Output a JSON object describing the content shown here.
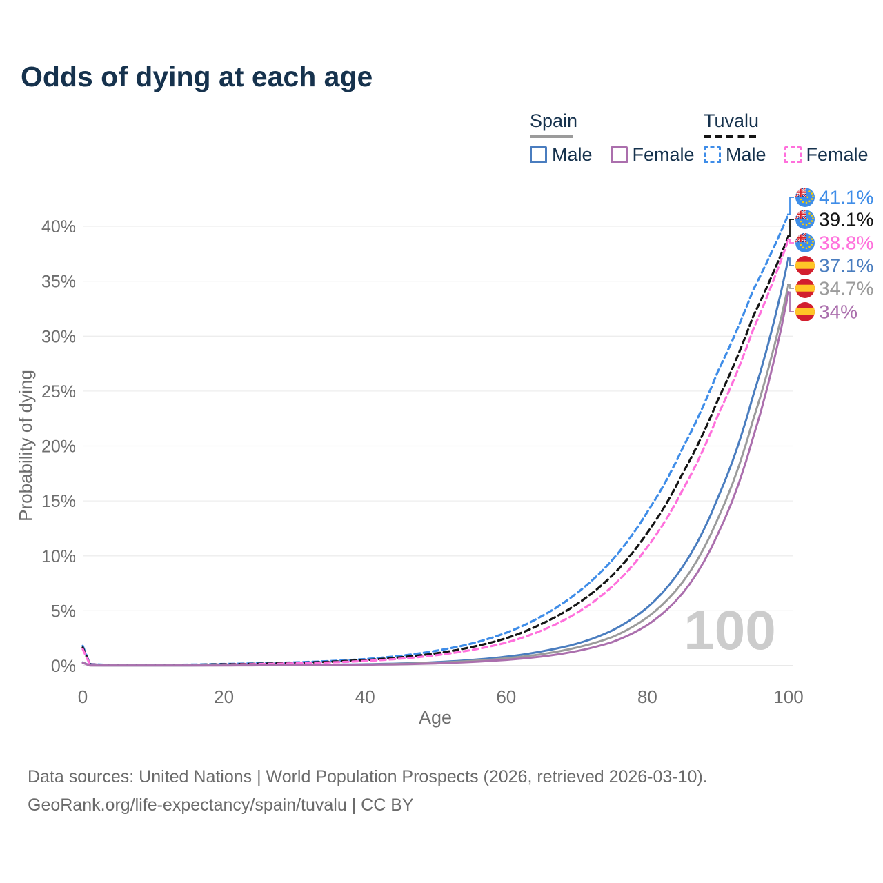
{
  "title": "Odds of dying at each age",
  "watermark": "100",
  "legend": {
    "groups": [
      {
        "country": "Spain",
        "underline_style": "solid",
        "underline_color": "#9b9b9b",
        "items": [
          {
            "label": "Male",
            "color": "#4a7dbf",
            "dashed": false
          },
          {
            "label": "Female",
            "color": "#ab6fad",
            "dashed": false
          }
        ]
      },
      {
        "country": "Tuvalu",
        "underline_style": "dashed",
        "underline_color": "#141414",
        "items": [
          {
            "label": "Male",
            "color": "#3f8de8",
            "dashed": true
          },
          {
            "label": "Female",
            "color": "#ff70dc",
            "dashed": true
          }
        ]
      }
    ]
  },
  "footer": {
    "line1": "Data sources: United Nations | World Population Prospects (2026, retrieved 2026-03-10).",
    "line2": "GeoRank.org/life-expectancy/spain/tuvalu | CC BY"
  },
  "chart_data": {
    "type": "line",
    "title": "Odds of dying at each age",
    "xlabel": "Age",
    "ylabel": "Probability of dying",
    "xlim": [
      0,
      100
    ],
    "ylim": [
      0,
      43
    ],
    "xticks": [
      0,
      20,
      40,
      60,
      80,
      100
    ],
    "yticks": [
      0,
      5,
      10,
      15,
      20,
      25,
      30,
      35,
      40
    ],
    "y_tick_suffix": "%",
    "grid": true,
    "legend_position": "top-right",
    "x": [
      0,
      1,
      5,
      10,
      15,
      20,
      25,
      30,
      35,
      40,
      45,
      50,
      55,
      60,
      65,
      70,
      75,
      80,
      85,
      90,
      95,
      100
    ],
    "series": [
      {
        "name": "Tuvalu Male",
        "country": "Tuvalu",
        "sex": "Male",
        "color": "#3f8de8",
        "dash": true,
        "flag": "tuvalu",
        "end_label": "41.1%",
        "end_value": 41.1,
        "values": [
          1.8,
          0.15,
          0.05,
          0.05,
          0.1,
          0.16,
          0.22,
          0.3,
          0.42,
          0.6,
          0.9,
          1.35,
          2.0,
          3.0,
          4.5,
          6.6,
          9.6,
          14.0,
          19.8,
          26.8,
          34.2,
          41.1
        ]
      },
      {
        "name": "Tuvalu Both sexes",
        "country": "Tuvalu",
        "sex": "Both",
        "color": "#141414",
        "dash": true,
        "flag": "tuvalu",
        "end_label": "39.1%",
        "end_value": 39.1,
        "values": [
          1.65,
          0.13,
          0.045,
          0.04,
          0.08,
          0.13,
          0.18,
          0.25,
          0.36,
          0.51,
          0.76,
          1.12,
          1.68,
          2.5,
          3.8,
          5.6,
          8.2,
          12.1,
          17.5,
          24.2,
          31.8,
          39.1
        ]
      },
      {
        "name": "Tuvalu Female",
        "country": "Tuvalu",
        "sex": "Female",
        "color": "#ff70dc",
        "dash": true,
        "flag": "tuvalu",
        "end_label": "38.8%",
        "end_value": 38.8,
        "values": [
          1.5,
          0.12,
          0.04,
          0.035,
          0.07,
          0.1,
          0.15,
          0.21,
          0.3,
          0.43,
          0.64,
          0.95,
          1.42,
          2.1,
          3.2,
          4.8,
          7.2,
          10.8,
          16.0,
          22.8,
          30.6,
          38.8
        ]
      },
      {
        "name": "Spain Male",
        "country": "Spain",
        "sex": "Male",
        "color": "#4a7dbf",
        "dash": false,
        "flag": "spain",
        "end_label": "37.1%",
        "end_value": 37.1,
        "values": [
          0.3,
          0.03,
          0.01,
          0.01,
          0.02,
          0.04,
          0.05,
          0.06,
          0.09,
          0.13,
          0.2,
          0.32,
          0.52,
          0.82,
          1.3,
          2.0,
          3.2,
          5.3,
          9.0,
          15.3,
          24.6,
          37.1
        ]
      },
      {
        "name": "Spain Both sexes",
        "country": "Spain",
        "sex": "Both",
        "color": "#9b9b9b",
        "dash": false,
        "flag": "spain",
        "end_label": "34.7%",
        "end_value": 34.7,
        "values": [
          0.28,
          0.025,
          0.01,
          0.01,
          0.02,
          0.03,
          0.04,
          0.05,
          0.07,
          0.11,
          0.17,
          0.27,
          0.43,
          0.67,
          1.05,
          1.65,
          2.6,
          4.4,
          7.6,
          13.4,
          22.4,
          34.7
        ]
      },
      {
        "name": "Spain Female",
        "country": "Spain",
        "sex": "Female",
        "color": "#ab6fad",
        "dash": false,
        "flag": "spain",
        "end_label": "34%",
        "end_value": 34.0,
        "values": [
          0.26,
          0.02,
          0.01,
          0.01,
          0.015,
          0.02,
          0.03,
          0.04,
          0.06,
          0.09,
          0.13,
          0.21,
          0.34,
          0.53,
          0.83,
          1.33,
          2.15,
          3.7,
          6.6,
          12.0,
          20.8,
          34.0
        ]
      }
    ]
  }
}
